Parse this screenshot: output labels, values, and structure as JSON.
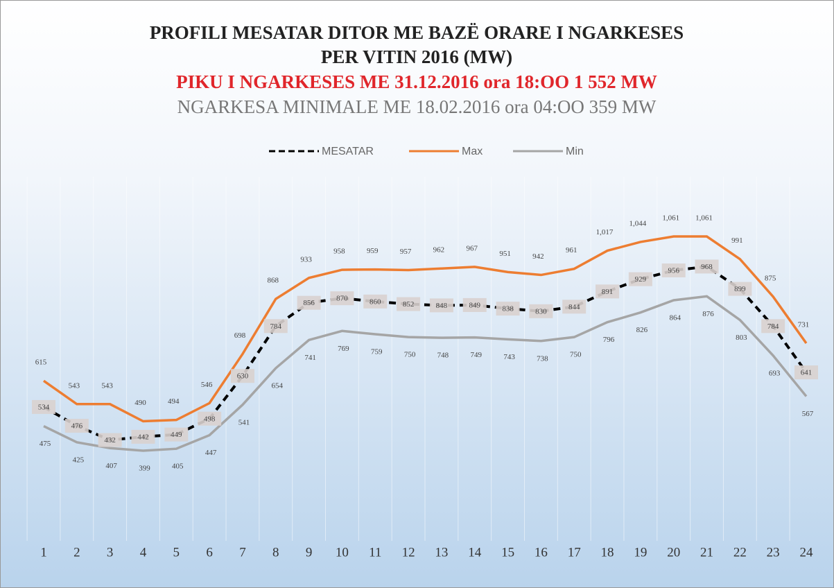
{
  "chart_data": {
    "type": "line",
    "title": "PROFILI MESATAR DITOR ME BAZË ORARE I NGARKESES",
    "subtitle": "PER VITIN 2016 (MW)",
    "annotations": [
      "PIKU I NGARKESES ME 31.12.2016 ora 18:OO  1 552 MW",
      "NGARKESA MINIMALE ME 18.02.2016 ora 04:OO  359 MW"
    ],
    "categories": [
      "1",
      "2",
      "3",
      "4",
      "5",
      "6",
      "7",
      "8",
      "9",
      "10",
      "11",
      "12",
      "13",
      "14",
      "15",
      "16",
      "17",
      "18",
      "19",
      "20",
      "21",
      "22",
      "23",
      "24"
    ],
    "series": [
      {
        "name": "MESATAR",
        "color": "#000000",
        "dashed": true,
        "values": [
          534,
          476,
          432,
          442,
          449,
          498,
          630,
          784,
          856,
          870,
          860,
          852,
          848,
          849,
          838,
          830,
          844,
          891,
          929,
          956,
          968,
          899,
          784,
          641
        ]
      },
      {
        "name": "Max",
        "color": "#ed7d31",
        "values": [
          615,
          543,
          543,
          490,
          494,
          546,
          698,
          868,
          933,
          958,
          959,
          957,
          962,
          967,
          951,
          942,
          961,
          1017,
          1044,
          1061,
          1061,
          991,
          875,
          731
        ],
        "value_labels": [
          "615",
          "543",
          "543",
          "490",
          "494",
          "546",
          "698",
          "868",
          "933",
          "958",
          "959",
          "957",
          "962",
          "967",
          "951",
          "942",
          "961",
          "1,017",
          "1,044",
          "1,061",
          "1,061",
          "991",
          "875",
          "731"
        ]
      },
      {
        "name": "Min",
        "color": "#a5a5a5",
        "values": [
          475,
          425,
          407,
          399,
          405,
          447,
          541,
          654,
          741,
          769,
          759,
          750,
          748,
          749,
          743,
          738,
          750,
          796,
          826,
          864,
          876,
          803,
          693,
          567
        ]
      }
    ],
    "legend": "top"
  }
}
